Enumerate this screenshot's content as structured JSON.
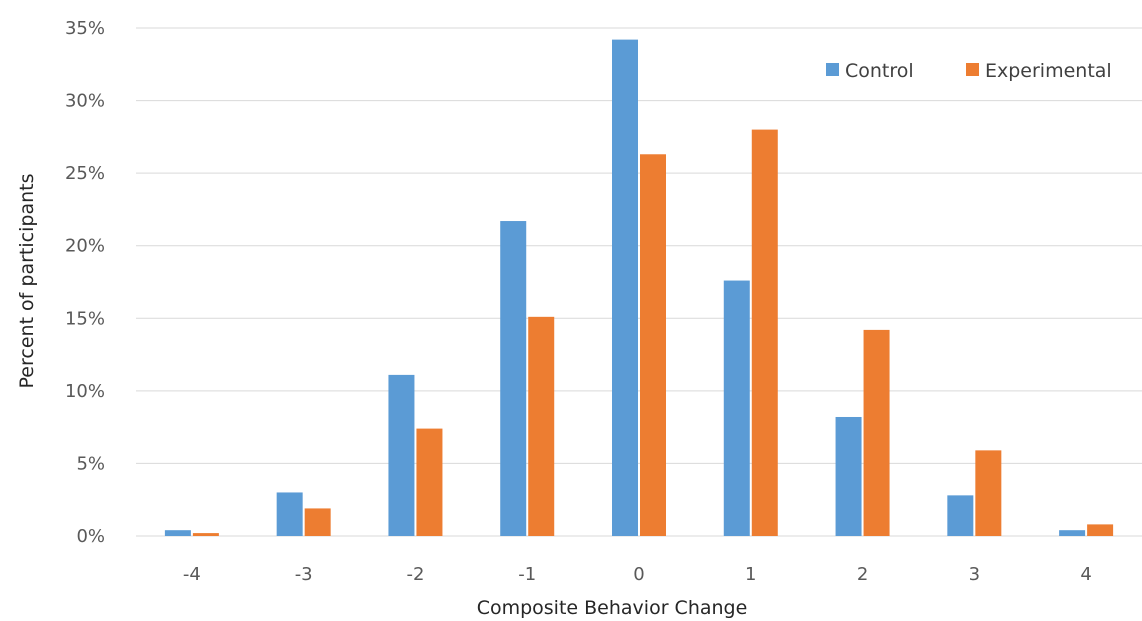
{
  "chart_data": {
    "type": "bar",
    "xlabel": "Composite Behavior Change",
    "ylabel": "Percent of participants",
    "categories": [
      "-4",
      "-3",
      "-2",
      "-1",
      "0",
      "1",
      "2",
      "3",
      "4"
    ],
    "series": [
      {
        "name": "Control",
        "color": "#5B9BD5",
        "values": [
          0.4,
          3.0,
          11.1,
          21.7,
          34.2,
          17.6,
          8.2,
          2.8,
          0.4
        ]
      },
      {
        "name": "Experimental",
        "color": "#ED7D31",
        "values": [
          0.2,
          1.9,
          7.4,
          15.1,
          26.3,
          28.0,
          14.2,
          5.9,
          0.8
        ]
      }
    ],
    "ylim": [
      0,
      35
    ],
    "yticks": [
      "0%",
      "5%",
      "10%",
      "15%",
      "20%",
      "25%",
      "30%",
      "35%"
    ],
    "grid": true,
    "legend_position": "top-right"
  }
}
